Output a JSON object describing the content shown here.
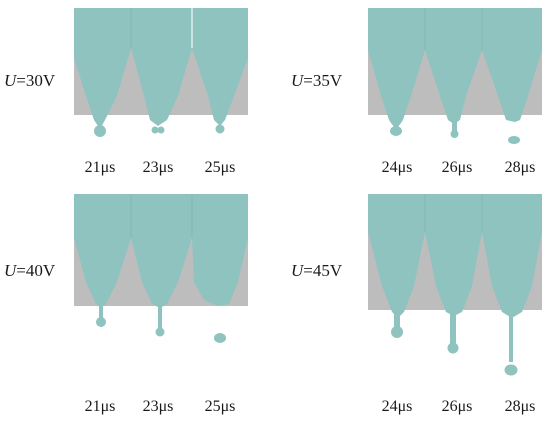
{
  "figure": {
    "panels": [
      {
        "voltage_var": "U",
        "voltage_value": "=30V",
        "times": [
          "21μs",
          "23μs",
          "25μs"
        ]
      },
      {
        "voltage_var": "U",
        "voltage_value": "=35V",
        "times": [
          "24μs",
          "26μs",
          "28μs"
        ]
      },
      {
        "voltage_var": "U",
        "voltage_value": "=40V",
        "times": [
          "21μs",
          "23μs",
          "25μs"
        ]
      },
      {
        "voltage_var": "U",
        "voltage_value": "=45V",
        "times": [
          "24μs",
          "26μs",
          "28μs"
        ]
      }
    ],
    "colors": {
      "liquid": "#8fc3bf",
      "liquid_edge": "#7fb7b2",
      "background_gray": "#bdbdbd",
      "image_white": "#ffffff"
    }
  }
}
